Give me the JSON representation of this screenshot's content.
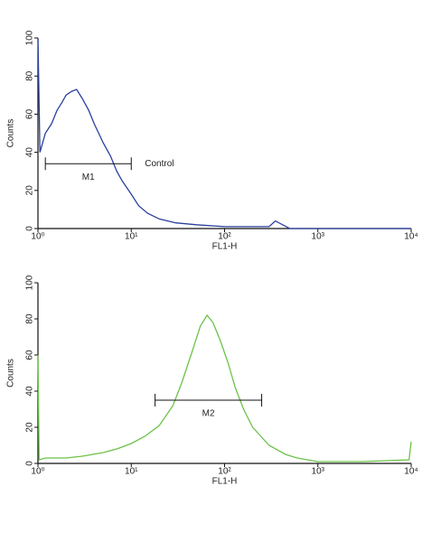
{
  "chart_data": [
    {
      "type": "line",
      "xscale": "log",
      "color": "#2b3f9e",
      "xlabel": "FL1-H",
      "ylabel": "Counts",
      "xlim": [
        1,
        10000
      ],
      "ylim": [
        0,
        100
      ],
      "xticks": [
        {
          "value": 1,
          "label": "10⁰"
        },
        {
          "value": 10,
          "label": "10¹"
        },
        {
          "value": 100,
          "label": "10²"
        },
        {
          "value": 1000,
          "label": "10³"
        },
        {
          "value": 10000,
          "label": "10⁴"
        }
      ],
      "yticks": [
        0,
        20,
        40,
        60,
        80,
        100
      ],
      "x": [
        1,
        1.05,
        1.2,
        1.4,
        1.6,
        1.8,
        2,
        2.3,
        2.6,
        3,
        3.5,
        4,
        5,
        6,
        7,
        8,
        10,
        12,
        15,
        20,
        30,
        50,
        100,
        200,
        300,
        350,
        500,
        1000,
        10000
      ],
      "values": [
        100,
        40,
        50,
        55,
        62,
        66,
        70,
        72,
        73,
        68,
        62,
        55,
        45,
        38,
        30,
        25,
        18,
        12,
        8,
        5,
        3,
        2,
        1,
        1,
        1,
        4,
        0,
        0,
        0
      ],
      "markers": [
        {
          "label": "M1",
          "x": [
            1.2,
            10
          ],
          "y": 34
        }
      ],
      "annotation": "Control"
    },
    {
      "type": "line",
      "xscale": "log",
      "color": "#6cc24a",
      "xlabel": "FL1-H",
      "ylabel": "Counts",
      "xlim": [
        1,
        10000
      ],
      "ylim": [
        0,
        100
      ],
      "xticks": [
        {
          "value": 1,
          "label": "10⁰"
        },
        {
          "value": 10,
          "label": "10¹"
        },
        {
          "value": 100,
          "label": "10²"
        },
        {
          "value": 1000,
          "label": "10³"
        },
        {
          "value": 10000,
          "label": "10⁴"
        }
      ],
      "yticks": [
        0,
        20,
        40,
        60,
        80,
        100
      ],
      "x": [
        1,
        1.03,
        1.2,
        2,
        3,
        5,
        7,
        10,
        14,
        20,
        28,
        35,
        45,
        55,
        65,
        75,
        90,
        110,
        130,
        160,
        200,
        300,
        450,
        600,
        1000,
        3000,
        9500,
        10000
      ],
      "values": [
        60,
        2,
        3,
        3,
        4,
        6,
        8,
        11,
        15,
        21,
        32,
        45,
        62,
        76,
        82,
        78,
        68,
        55,
        42,
        30,
        20,
        10,
        5,
        3,
        1,
        1,
        2,
        12
      ],
      "markers": [
        {
          "label": "M2",
          "x": [
            18,
            250
          ],
          "y": 35
        }
      ]
    }
  ]
}
